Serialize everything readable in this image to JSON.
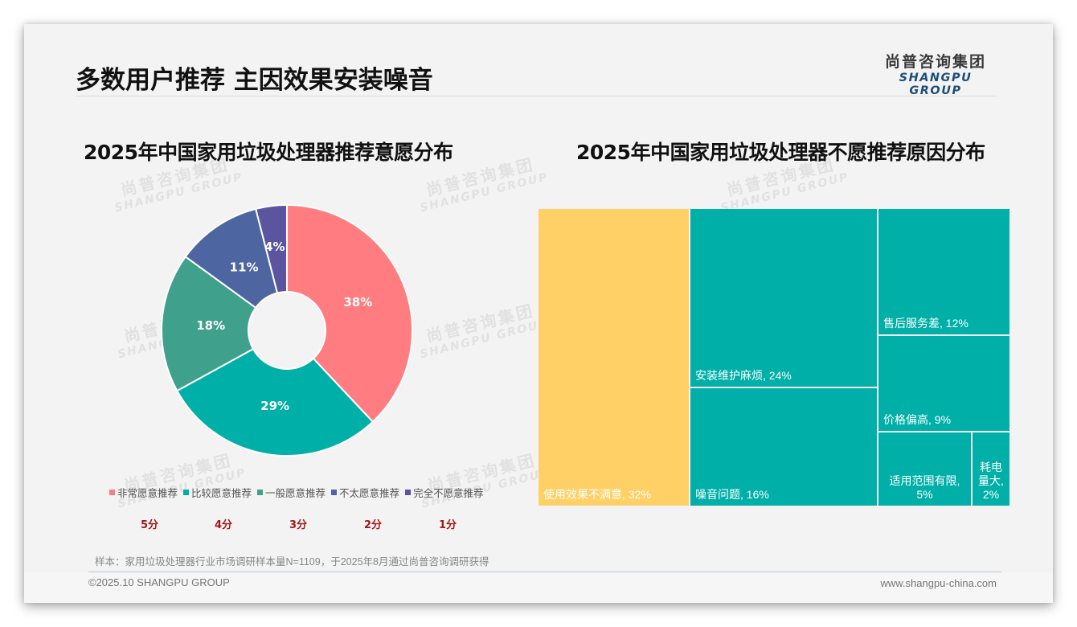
{
  "header": {
    "page_title": "多数用户推荐 主因效果安装噪音",
    "logo_cn": "尚普咨询集团",
    "logo_en": "SHANGPU GROUP"
  },
  "watermark": {
    "cn": "尚普咨询集团",
    "en": "SHANGPU GROUP"
  },
  "left_chart": {
    "title": "2025年中国家用垃圾处理器推荐意愿分布",
    "slices": [
      {
        "label": "非常愿意推荐",
        "value": "38%",
        "score": "5分",
        "color": "#FF7C80"
      },
      {
        "label": "比较愿意推荐",
        "value": "29%",
        "score": "4分",
        "color": "#00B0A8"
      },
      {
        "label": "一般愿意推荐",
        "value": "18%",
        "score": "3分",
        "color": "#3FA08C"
      },
      {
        "label": "不太愿意推荐",
        "value": "11%",
        "score": "2分",
        "color": "#4D65A0"
      },
      {
        "label": "完全不愿意推荐",
        "value": "4%",
        "score": "1分",
        "color": "#5A559E"
      }
    ]
  },
  "right_chart": {
    "title": "2025年中国家用垃圾处理器不愿推荐原因分布",
    "tiles": [
      {
        "label": "使用效果不满意, 32%",
        "color": "#FFD066"
      },
      {
        "label": "安装维护麻烦, 24%",
        "color": "#00B0A8"
      },
      {
        "label": "噪音问题, 16%",
        "color": "#00B0A8"
      },
      {
        "label": "售后服务差, 12%",
        "color": "#00B0A8"
      },
      {
        "label": "价格偏高, 9%",
        "color": "#00B0A8"
      },
      {
        "label": "适用范围有限, 5%",
        "color": "#00B0A8"
      },
      {
        "label": "耗电量大, 2%",
        "color": "#00B0A8"
      }
    ],
    "tile_label_lines": {
      "scope_l1": "适用范围有限,",
      "scope_l2": "5%",
      "power_l1": "耗电",
      "power_l2": "量大,",
      "power_l3": "2%"
    }
  },
  "footer": {
    "sample_note": "样本：家用垃圾处理器行业市场调研样本量N=1109，于2025年8月通过尚普咨询调研获得",
    "copyright": "©2025.10 SHANGPU GROUP",
    "website": "www.shangpu-china.com"
  },
  "chart_data": [
    {
      "type": "pie",
      "title": "2025年中国家用垃圾处理器推荐意愿分布",
      "donut": true,
      "categories": [
        "非常愿意推荐",
        "比较愿意推荐",
        "一般愿意推荐",
        "不太愿意推荐",
        "完全不愿意推荐"
      ],
      "values": [
        38,
        29,
        18,
        11,
        4
      ],
      "unit": "%",
      "scores": [
        "5分",
        "4分",
        "3分",
        "2分",
        "1分"
      ],
      "colors": [
        "#FF7C80",
        "#00B0A8",
        "#3FA08C",
        "#4D65A0",
        "#5A559E"
      ],
      "legend_position": "bottom"
    },
    {
      "type": "treemap",
      "title": "2025年中国家用垃圾处理器不愿推荐原因分布",
      "categories": [
        "使用效果不满意",
        "安装维护麻烦",
        "噪音问题",
        "售后服务差",
        "价格偏高",
        "适用范围有限",
        "耗电量大"
      ],
      "values": [
        32,
        24,
        16,
        12,
        9,
        5,
        2
      ],
      "unit": "%"
    }
  ]
}
